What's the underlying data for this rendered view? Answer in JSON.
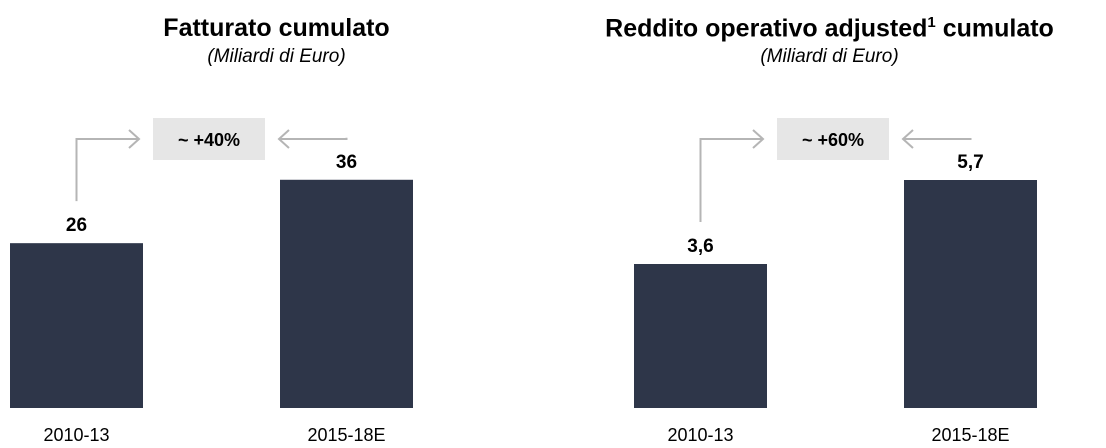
{
  "chart_data": [
    {
      "type": "bar",
      "title": "Fatturato cumulato",
      "subtitle": "(Miliardi di Euro)",
      "categories": [
        "2010-13",
        "2015-18E"
      ],
      "values": [
        26,
        36
      ],
      "value_labels": [
        "26",
        "36"
      ],
      "growth_label": "~ +40%",
      "ylim": [
        0,
        53
      ],
      "bar_color": "#2e3649",
      "grid": false
    },
    {
      "type": "bar",
      "title": "Reddito operativo adjusted",
      "title_superscript": "1",
      "title_suffix": " cumulato",
      "subtitle": "(Miliardi di Euro)",
      "categories": [
        "2010-13",
        "2015-18E"
      ],
      "values": [
        3.6,
        5.7
      ],
      "value_labels": [
        "3,6",
        "5,7"
      ],
      "growth_label": "~ +60%",
      "ylim": [
        0,
        8.4
      ],
      "bar_color": "#2e3649",
      "grid": false
    }
  ]
}
